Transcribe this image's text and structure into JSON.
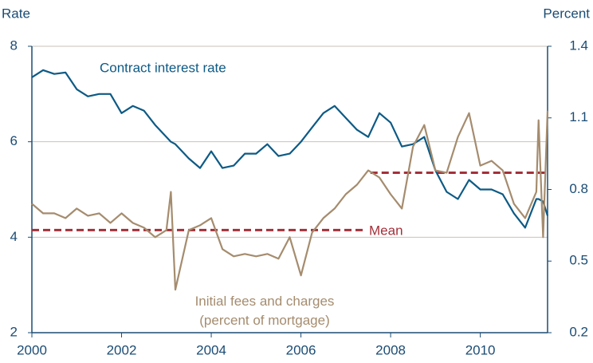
{
  "chart_data": {
    "type": "line",
    "y_label": "Rate",
    "y2_label": "Percent",
    "x": [
      2000,
      2000.25,
      2000.5,
      2000.75,
      2001,
      2001.25,
      2001.5,
      2001.75,
      2002,
      2002.25,
      2002.5,
      2002.75,
      2003,
      2003.1,
      2003.2,
      2003.5,
      2003.75,
      2004,
      2004.25,
      2004.5,
      2004.75,
      2005,
      2005.25,
      2005.5,
      2005.75,
      2006,
      2006.25,
      2006.5,
      2006.75,
      2007,
      2007.25,
      2007.5,
      2007.75,
      2008,
      2008.25,
      2008.5,
      2008.75,
      2009,
      2009.25,
      2009.5,
      2009.75,
      2010,
      2010.25,
      2010.5,
      2010.75,
      2011,
      2011.25,
      2011.3,
      2011.4,
      2011.5
    ],
    "series": [
      {
        "name": "Contract interest rate",
        "color": "#0d5a85",
        "axis": "y",
        "values": [
          7.35,
          7.5,
          7.42,
          7.45,
          7.1,
          6.95,
          7.0,
          7.0,
          6.6,
          6.75,
          6.65,
          6.35,
          6.1,
          6.0,
          5.95,
          5.65,
          5.45,
          5.8,
          5.45,
          5.5,
          5.75,
          5.75,
          5.95,
          5.7,
          5.75,
          6.0,
          6.3,
          6.6,
          6.75,
          6.5,
          6.25,
          6.1,
          6.6,
          6.4,
          5.9,
          5.95,
          6.1,
          5.4,
          4.95,
          4.8,
          5.2,
          5.0,
          5.0,
          4.9,
          4.5,
          4.2,
          4.8,
          4.8,
          4.75,
          4.45
        ]
      },
      {
        "name": "Initial fees and charges|(percent of mortgage)",
        "color": "#a58c6e",
        "axis": "y2",
        "values": [
          0.74,
          0.7,
          0.7,
          0.68,
          0.72,
          0.69,
          0.7,
          0.66,
          0.7,
          0.66,
          0.64,
          0.6,
          0.63,
          0.79,
          0.38,
          0.63,
          0.65,
          0.68,
          0.55,
          0.52,
          0.53,
          0.52,
          0.53,
          0.51,
          0.6,
          0.44,
          0.62,
          0.68,
          0.72,
          0.78,
          0.82,
          0.88,
          0.85,
          0.78,
          0.72,
          0.98,
          1.07,
          0.88,
          0.87,
          1.02,
          1.12,
          0.9,
          0.92,
          0.88,
          0.74,
          0.68,
          0.79,
          1.09,
          0.6,
          1.13
        ]
      }
    ],
    "mean_label": "Mean",
    "mean_color": "#a3303a",
    "mean_lines": [
      {
        "value": 0.63,
        "x": [
          2000,
          2007.4
        ]
      },
      {
        "value": 0.87,
        "x": [
          2007.55,
          2011.5
        ]
      }
    ],
    "xlim": [
      2000,
      2011.5
    ],
    "xticks": [
      2000,
      2002,
      2004,
      2006,
      2008,
      2010
    ],
    "ylim": [
      2,
      8
    ],
    "yticks": [
      2,
      4,
      6,
      8
    ],
    "y2lim": [
      0.2,
      1.4
    ],
    "y2ticks": [
      0.2,
      0.5,
      0.8,
      1.1,
      1.4
    ],
    "grid": true
  }
}
